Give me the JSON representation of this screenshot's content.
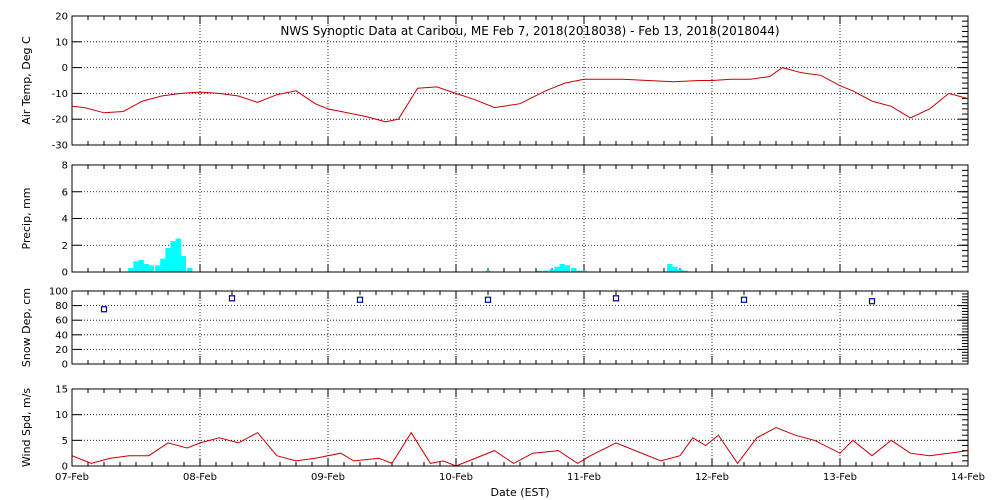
{
  "chart_data": {
    "type": "line",
    "title": "NWS Synoptic Data at Caribou, ME   Feb  7, 2018(2018038) - Feb 13, 2018(2018044)",
    "xlabel": "Date (EST)",
    "x_range": [
      "2018-02-07T00:00",
      "2018-02-14T00:00"
    ],
    "x_tick_labels": [
      "07-Feb",
      "08-Feb",
      "09-Feb",
      "10-Feb",
      "11-Feb",
      "12-Feb",
      "13-Feb",
      "14-Feb"
    ],
    "grid": true,
    "panels": [
      {
        "id": "air_temp",
        "type": "line",
        "ylabel": "Air Temp, Deg C",
        "ylim": [
          -30,
          20
        ],
        "y_ticks": [
          -30,
          -20,
          -10,
          0,
          10,
          20
        ],
        "color": "#cc0000",
        "series": [
          {
            "x": [
              0,
              0.1,
              0.25,
              0.4,
              0.55,
              0.7,
              0.85,
              1.0,
              1.15,
              1.3,
              1.45,
              1.6,
              1.75,
              1.9,
              2.0,
              2.15,
              2.3,
              2.45,
              2.55,
              2.7,
              2.85,
              3.0,
              3.15,
              3.3,
              3.5,
              3.7,
              3.85,
              4.0,
              4.15,
              4.3,
              4.5,
              4.7,
              4.9,
              5.0,
              5.15,
              5.3,
              5.45,
              5.55,
              5.7,
              5.85,
              6.0,
              6.1,
              6.25,
              6.4,
              6.55,
              6.7,
              6.85,
              7.0
            ],
            "y": [
              -15,
              -15.5,
              -17.5,
              -17,
              -13,
              -11,
              -10,
              -9.5,
              -10,
              -11,
              -13.5,
              -10.5,
              -9,
              -14,
              -16,
              -17.5,
              -19,
              -21,
              -20,
              -8,
              -7.5,
              -10,
              -12.5,
              -15.5,
              -14,
              -9,
              -6,
              -4.5,
              -4.5,
              -4.5,
              -5,
              -5.5,
              -5,
              -5,
              -4.5,
              -4.5,
              -3.5,
              0,
              -2,
              -3,
              -7,
              -9,
              -13,
              -15,
              -19.5,
              -16,
              -10,
              -12
            ]
          }
        ]
      },
      {
        "id": "precip",
        "type": "bar",
        "ylabel": "Precip, mm",
        "ylim": [
          0,
          8
        ],
        "y_ticks": [
          0,
          2,
          4,
          6,
          8
        ],
        "color": "#00ffff",
        "bar_width_days": 0.0417,
        "series": [
          {
            "x": [
              0.46,
              0.5,
              0.54,
              0.58,
              0.62,
              0.67,
              0.71,
              0.75,
              0.79,
              0.83,
              0.87,
              0.92,
              3.25,
              3.65,
              3.7,
              3.75,
              3.79,
              3.83,
              3.87,
              3.92,
              3.96,
              4.0,
              4.67,
              4.71,
              4.75,
              4.79
            ],
            "y": [
              0.3,
              0.8,
              0.9,
              0.6,
              0.5,
              0.5,
              1.0,
              1.8,
              2.3,
              2.5,
              1.2,
              0.3,
              0.1,
              0.1,
              0.1,
              0.2,
              0.4,
              0.6,
              0.5,
              0.3,
              0.1,
              0.1,
              0.6,
              0.4,
              0.2,
              0.1
            ]
          }
        ]
      },
      {
        "id": "snow_depth",
        "type": "scatter",
        "ylabel": "Snow Dep, cm",
        "ylim": [
          0,
          100
        ],
        "y_ticks": [
          0,
          20,
          40,
          60,
          80,
          100
        ],
        "color": "#000099",
        "series": [
          {
            "x": [
              0.25,
              1.25,
              2.25,
              3.25,
              4.25,
              5.25,
              6.25
            ],
            "y": [
              75,
              90,
              88,
              88,
              90,
              88,
              86
            ]
          }
        ]
      },
      {
        "id": "wind_speed",
        "type": "line",
        "ylabel": "Wind Spd, m/s",
        "ylim": [
          0,
          15
        ],
        "y_ticks": [
          0,
          5,
          10,
          15
        ],
        "color": "#cc0000",
        "series": [
          {
            "x": [
              0,
              0.15,
              0.3,
              0.45,
              0.6,
              0.75,
              0.9,
              1.0,
              1.15,
              1.3,
              1.45,
              1.5,
              1.6,
              1.75,
              1.9,
              2.1,
              2.2,
              2.4,
              2.5,
              2.65,
              2.8,
              2.9,
              3.0,
              3.1,
              3.3,
              3.45,
              3.6,
              3.8,
              3.95,
              4.05,
              4.25,
              4.4,
              4.6,
              4.75,
              4.85,
              4.95,
              5.05,
              5.2,
              5.35,
              5.5,
              5.65,
              5.8,
              6.0,
              6.1,
              6.25,
              6.4,
              6.55,
              6.7,
              6.85,
              7.0
            ],
            "y": [
              2,
              0.5,
              1.5,
              2,
              2,
              4.5,
              3.5,
              4.5,
              5.5,
              4.5,
              6.5,
              5,
              2,
              1,
              1.5,
              2.5,
              1,
              1.5,
              0.5,
              6.5,
              0.5,
              1,
              0,
              1,
              3,
              0.5,
              2.5,
              3,
              0.5,
              2,
              4.5,
              3,
              1,
              2,
              5.5,
              4,
              6,
              0.5,
              5.5,
              7.5,
              6,
              5,
              2.5,
              5,
              2,
              5,
              2.5,
              2,
              2.5,
              3
            ]
          }
        ]
      }
    ]
  }
}
